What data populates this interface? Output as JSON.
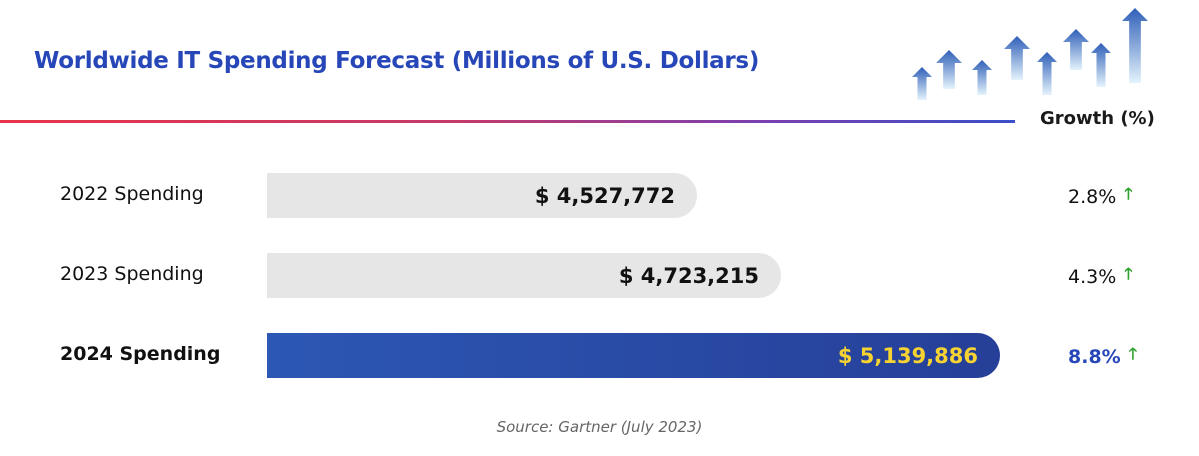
{
  "chart_data": {
    "type": "bar",
    "title": "Worldwide IT Spending Forecast (Millions of U.S. Dollars)",
    "categories": [
      "2022 Spending",
      "2023 Spending",
      "2024 Spending"
    ],
    "values": [
      4527772,
      4723215,
      5139886
    ],
    "value_labels": [
      "$ 4,527,772",
      "$ 4,723,215",
      "$ 5,139,886"
    ],
    "growth_header": "Growth (%)",
    "growth": [
      "2.8%",
      "4.3%",
      "8.8%"
    ],
    "growth_icon": "arrow-up-icon",
    "highlight_index": 2,
    "source": "Source: Gartner (July 2023)",
    "colors": {
      "bar": "#e6e6e6",
      "highlight_bar": "#2c4fa8",
      "highlight_text": "#f7d332",
      "title": "#2747b8",
      "growth_arrow": "#2ca02c"
    }
  }
}
